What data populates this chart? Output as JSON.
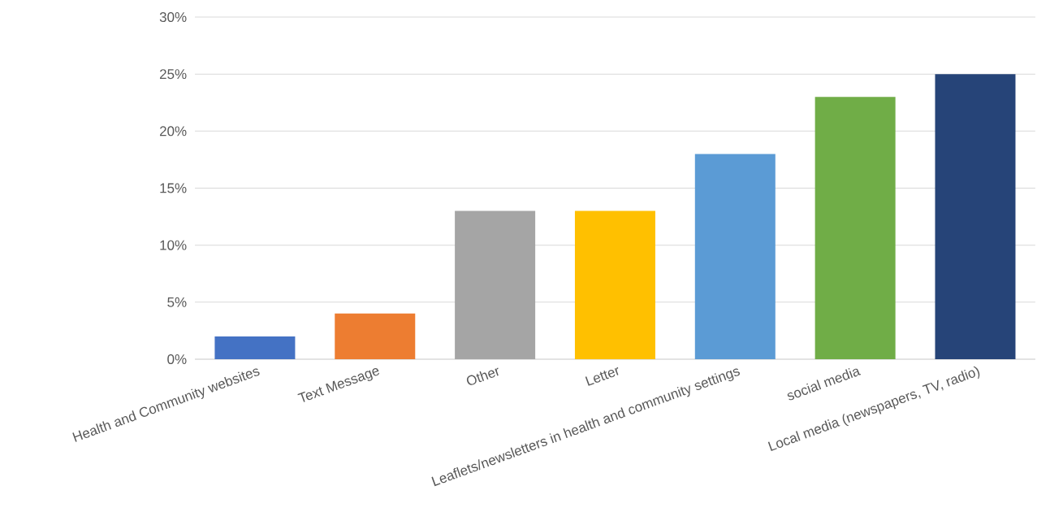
{
  "chart_data": {
    "type": "bar",
    "categories": [
      "Health and Community websites",
      "Text Message",
      "Other",
      "Letter",
      "Leaflets/newsletters in health and community settings",
      "social media",
      "Local media (newspapers, TV, radio)"
    ],
    "values": [
      2,
      4,
      13,
      13,
      18,
      23,
      25
    ],
    "colors": [
      "#4472c4",
      "#ed7d31",
      "#a5a5a5",
      "#ffc000",
      "#5b9bd5",
      "#70ad47",
      "#264478"
    ],
    "ylim": [
      0,
      30
    ],
    "yticks": [
      {
        "value": 0,
        "label": "0%"
      },
      {
        "value": 5,
        "label": "5%"
      },
      {
        "value": 10,
        "label": "10%"
      },
      {
        "value": 15,
        "label": "15%"
      },
      {
        "value": 20,
        "label": "20%"
      },
      {
        "value": 25,
        "label": "25%"
      },
      {
        "value": 30,
        "label": "30%"
      }
    ],
    "grid": "y"
  }
}
